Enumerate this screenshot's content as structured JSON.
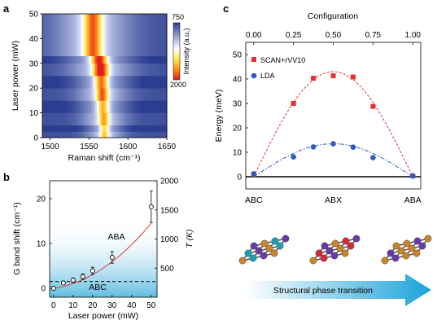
{
  "panels": {
    "a": "a",
    "b": "b",
    "c": "c"
  },
  "chart_data": [
    {
      "type": "heatmap",
      "panel": "a",
      "xlabel": "Raman shift (cm⁻¹)",
      "ylabel": "Laser power (mW)",
      "xlim": [
        1490,
        1650
      ],
      "ylim": [
        0,
        50
      ],
      "xticks": [
        "1500",
        "1550",
        "1600",
        "1650"
      ],
      "yticks": [
        "0",
        "10",
        "20",
        "30",
        "40",
        "50"
      ],
      "colorbar": {
        "label": "Intensity (a.u.)",
        "top": "750",
        "bottom": "2000",
        "colors": [
          "#2a3d8f",
          "#ffffff",
          "#ffe44a",
          "#ff8c1a",
          "#e02020"
        ]
      },
      "rows": [
        {
          "y0": 0,
          "y1": 2.5,
          "peak": 1570,
          "width": 6,
          "amp": 0.5
        },
        {
          "y0": 2.5,
          "y1": 5,
          "peak": 1570,
          "width": 6,
          "amp": 0.55
        },
        {
          "y0": 5,
          "y1": 10,
          "peak": 1569,
          "width": 7,
          "amp": 0.6
        },
        {
          "y0": 10,
          "y1": 15,
          "peak": 1568,
          "width": 8,
          "amp": 0.65
        },
        {
          "y0": 15,
          "y1": 20,
          "peak": 1567,
          "width": 8,
          "amp": 0.75
        },
        {
          "y0": 20,
          "y1": 25,
          "peak": 1566,
          "width": 9,
          "amp": 0.8
        },
        {
          "y0": 25,
          "y1": 30,
          "peak": 1565,
          "width": 10,
          "amp": 0.95
        },
        {
          "y0": 30,
          "y1": 33,
          "peak": 1563,
          "width": 11,
          "amp": 1.0
        },
        {
          "y0": 33,
          "y1": 50,
          "peak": 1555,
          "width": 12,
          "amp": 0.75
        }
      ]
    },
    {
      "type": "scatter",
      "panel": "b",
      "xlabel": "Laser power (mW)",
      "ylabel": "G band shift (cm⁻¹)",
      "y2label": "T (K)",
      "xlim": [
        -2,
        53
      ],
      "ylim": [
        -2,
        24
      ],
      "y2lim": [
        0,
        2000
      ],
      "xticks": [
        "0",
        "10",
        "20",
        "30",
        "40",
        "50"
      ],
      "yticks": [
        "0",
        "10",
        "20"
      ],
      "y2ticks": [
        "500",
        "1000",
        "1500",
        "2000"
      ],
      "regions": [
        {
          "label": "ABA"
        },
        {
          "label": "ABC"
        }
      ],
      "dashed_y": 1.5,
      "points": [
        {
          "x": 0,
          "y": 0.0,
          "err": 0.4
        },
        {
          "x": 5,
          "y": 1.2,
          "err": 0.4
        },
        {
          "x": 10,
          "y": 1.8,
          "err": 0.5
        },
        {
          "x": 15,
          "y": 2.6,
          "err": 0.6
        },
        {
          "x": 20,
          "y": 3.9,
          "err": 0.8
        },
        {
          "x": 30,
          "y": 6.9,
          "err": 1.3
        },
        {
          "x": 50,
          "y": 18.2,
          "err": 3.5
        }
      ],
      "fit": [
        [
          0,
          0
        ],
        [
          10,
          1.7
        ],
        [
          20,
          3.9
        ],
        [
          30,
          6.8
        ],
        [
          40,
          10.3
        ],
        [
          50,
          14.6
        ]
      ]
    },
    {
      "type": "line",
      "panel": "c",
      "xlabel_top": "Configuration",
      "ylabel": "Energy (meV)",
      "xlim": [
        -0.05,
        1.05
      ],
      "ylim": [
        -5,
        55
      ],
      "xticks": [
        "0.00",
        "0.25",
        "0.50",
        "0.75",
        "1.00"
      ],
      "yticks": [
        "0",
        "10",
        "20",
        "30",
        "40",
        "50"
      ],
      "bottom_labels": [
        {
          "x": 0,
          "label": "ABC"
        },
        {
          "x": 0.5,
          "label": "ABX"
        },
        {
          "x": 1,
          "label": "ABA"
        }
      ],
      "series": [
        {
          "name": "SCAN+rVV10",
          "color": "#e53030",
          "marker": "square",
          "x": [
            0,
            0.25,
            0.375,
            0.5,
            0.625,
            0.75,
            1.0
          ],
          "values": [
            1,
            30,
            40.3,
            41.3,
            40.8,
            28.8,
            0.3
          ],
          "amplitude": 43
        },
        {
          "name": "LDA",
          "color": "#2f5bbf",
          "marker": "circle",
          "x": [
            0,
            0.25,
            0.375,
            0.5,
            0.625,
            0.75,
            1.0
          ],
          "values": [
            1.2,
            8.1,
            12.2,
            13.5,
            12.1,
            7.8,
            0.3
          ],
          "amplitude": 13.5
        }
      ]
    }
  ],
  "transition": {
    "label": "Structural phase transition",
    "color": "#1aa3d9"
  }
}
